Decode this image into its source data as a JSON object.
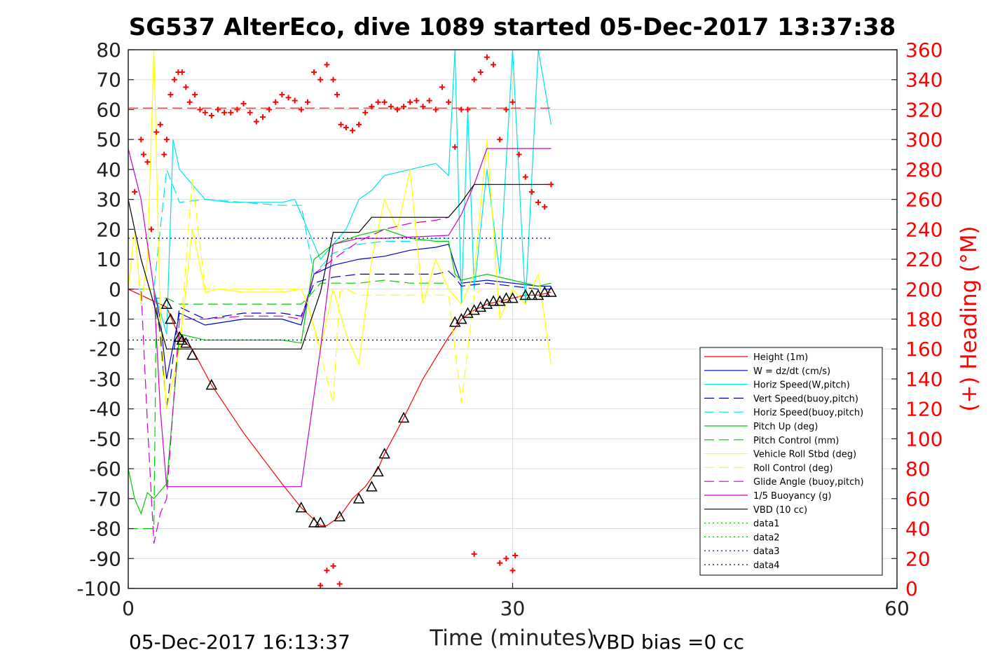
{
  "chart_data": {
    "type": "line",
    "title": "SG537 AlterEco, dive 1089 started 05-Dec-2017 13:37:38",
    "xlabel": "Time (minutes)",
    "ylabel": "",
    "y2label": "(+) Heading (°M)",
    "xlim": [
      0,
      60
    ],
    "ylim": [
      -100,
      80
    ],
    "y2lim": [
      0,
      360
    ],
    "xticks": [
      0,
      30,
      60
    ],
    "yticks": [
      80,
      70,
      60,
      50,
      40,
      30,
      20,
      10,
      0,
      -10,
      -20,
      -30,
      -40,
      -50,
      -60,
      -70,
      -80,
      -90,
      -100
    ],
    "y2ticks": [
      360,
      340,
      320,
      300,
      280,
      260,
      240,
      220,
      200,
      180,
      160,
      140,
      120,
      100,
      80,
      60,
      40,
      20,
      0
    ],
    "grid": true,
    "legend_position": "lower-right",
    "footer_left": "05-Dec-2017 16:13:37",
    "footer_right": "VBD bias =0 cc",
    "series": [
      {
        "name": "Height (1m)",
        "color": "#ff0000",
        "style": "solid",
        "x": [
          0,
          3,
          4,
          5,
          6.5,
          9,
          12,
          13.5,
          14.5,
          15,
          15.5,
          16.5,
          17.5,
          18.5,
          19.5,
          20,
          21.5,
          23,
          25,
          26,
          27,
          28,
          29,
          30,
          31,
          32,
          33
        ],
        "y": [
          0,
          -6,
          -16,
          -20,
          -32,
          -48,
          -65,
          -73,
          -77,
          -79,
          -79,
          -76,
          -70,
          -66,
          -60,
          -55,
          -43,
          -30,
          -16,
          -10,
          -7,
          -5,
          -4,
          -3,
          -2,
          -2,
          -1
        ]
      },
      {
        "name": "W = dz/dt (cm/s)",
        "color": "#0000cc",
        "style": "solid",
        "x": [
          0,
          2,
          2.5,
          3,
          4,
          6,
          9,
          12,
          13.5,
          14.5,
          16,
          18,
          20,
          22,
          24,
          25,
          25.5,
          26,
          28,
          30,
          32,
          33
        ],
        "y": [
          0,
          0,
          -10,
          -30,
          -8,
          -12,
          -10,
          -10,
          -12,
          5,
          8,
          10,
          11,
          13,
          14,
          15,
          8,
          2,
          3,
          2,
          1,
          1
        ]
      },
      {
        "name": "Horiz Speed(W,pitch)",
        "color": "#00e5e5",
        "style": "solid",
        "x": [
          0,
          2,
          3,
          3.5,
          4,
          5,
          6,
          8,
          10,
          12,
          13,
          14,
          15,
          16,
          17,
          18,
          19,
          20,
          22,
          24,
          25,
          25.5,
          26,
          26.5,
          27,
          28,
          29,
          30,
          31,
          32,
          33
        ],
        "y": [
          0,
          0,
          -15,
          50,
          40,
          35,
          30,
          29,
          29,
          29,
          30,
          20,
          10,
          15,
          20,
          30,
          33,
          38,
          40,
          42,
          38,
          80,
          -5,
          60,
          0,
          40,
          5,
          80,
          -5,
          80,
          55
        ]
      },
      {
        "name": "Vert Speed(buoy,pitch)",
        "color": "#0000cc",
        "style": "dashed",
        "x": [
          0,
          2,
          2.5,
          3,
          4,
          6,
          9,
          12,
          13.5,
          14.5,
          16,
          18,
          20,
          22,
          24,
          25,
          25.5,
          26,
          28,
          30,
          32,
          33
        ],
        "y": [
          0,
          0,
          -15,
          -40,
          -6,
          -10,
          -8,
          -8,
          -9,
          2,
          4,
          5,
          5,
          5,
          5,
          6,
          4,
          1,
          2,
          1,
          0,
          0
        ]
      },
      {
        "name": "Horiz Speed(buoy,pitch)",
        "color": "#00e5e5",
        "style": "dashed",
        "x": [
          0,
          2,
          3,
          4,
          6,
          9,
          12,
          13.5,
          14.5,
          16,
          18,
          20,
          22,
          24,
          25
        ],
        "y": [
          0,
          0,
          40,
          29,
          30,
          29,
          28,
          28,
          5,
          12,
          15,
          16,
          16,
          17,
          17
        ]
      },
      {
        "name": "Pitch Up (deg)",
        "color": "#00cc00",
        "style": "solid",
        "x": [
          0,
          0.5,
          1,
          1.5,
          2,
          3,
          4,
          6,
          9,
          12,
          13.5,
          14.5,
          16,
          18,
          20,
          22,
          24,
          25,
          25.5,
          26,
          28,
          30,
          32,
          33
        ],
        "y": [
          -60,
          -70,
          -75,
          -68,
          -70,
          -65,
          -15,
          -17,
          -17,
          -17,
          -18,
          10,
          15,
          18,
          20,
          17,
          16,
          16,
          5,
          3,
          5,
          3,
          1,
          2
        ]
      },
      {
        "name": "Pitch Control (mm)",
        "color": "#00cc00",
        "style": "dashed",
        "x": [
          0,
          2,
          2.2,
          3,
          4,
          6,
          12,
          13.5,
          14,
          15,
          18,
          20,
          22,
          24,
          25
        ],
        "y": [
          -80,
          -80,
          -3,
          -3,
          -5,
          -5,
          -5,
          -5,
          -3,
          2,
          2,
          3,
          2,
          2,
          2
        ]
      },
      {
        "name": "Vehicle Roll Stbd (deg)",
        "color": "#ffff00",
        "style": "solid",
        "x": [
          0,
          0.5,
          1,
          1.5,
          2,
          2.5,
          3,
          4,
          5,
          5.5,
          6,
          7,
          9,
          12,
          13.5,
          14,
          15,
          16,
          17,
          18,
          19,
          20,
          21,
          22,
          23,
          24,
          25,
          26,
          27,
          28,
          29,
          30,
          31,
          32,
          33
        ],
        "y": [
          0,
          20,
          -5,
          10,
          80,
          -10,
          -40,
          -20,
          20,
          10,
          -1,
          0,
          -1,
          -1,
          0,
          -5,
          -20,
          0,
          -15,
          -25,
          10,
          30,
          20,
          40,
          -5,
          10,
          0,
          -5,
          5,
          50,
          -10,
          0,
          -5,
          5,
          -25
        ]
      },
      {
        "name": "Roll Control (deg)",
        "color": "#ffff00",
        "style": "dashed",
        "x": [
          0,
          2,
          3,
          4,
          5,
          6,
          9,
          12,
          13.5,
          14,
          16,
          16.5,
          17,
          18,
          20,
          22,
          24,
          25,
          26,
          27,
          27.5
        ],
        "y": [
          0,
          0,
          -40,
          -20,
          37,
          0,
          0,
          0,
          0,
          -5,
          -38,
          -1,
          0,
          -2,
          -2,
          -2,
          -2,
          -2,
          -38,
          -2,
          0
        ]
      },
      {
        "name": "Glide Angle (buoy,pitch)",
        "color": "#cc00cc",
        "style": "dashed",
        "x": [
          0,
          1,
          1.5,
          2,
          2.5,
          3,
          4,
          6,
          9,
          12,
          13.5,
          14.5,
          16,
          18,
          20,
          22,
          24,
          25
        ],
        "y": [
          0,
          0,
          -45,
          -85,
          -75,
          -70,
          -10,
          -10,
          -9,
          -9,
          -10,
          5,
          10,
          16,
          20,
          22,
          23,
          24
        ]
      },
      {
        "name": "1/5 Buoyancy (g)",
        "color": "#cc00cc",
        "style": "solid",
        "x": [
          0,
          1,
          2,
          2.5,
          3,
          13.5,
          15,
          16,
          18,
          20,
          25,
          26,
          27,
          28,
          33
        ],
        "y": [
          47,
          30,
          0,
          -40,
          -66,
          -66,
          -20,
          15,
          17,
          17,
          18,
          25,
          35,
          47,
          47
        ]
      },
      {
        "name": "VBD (10 cc)",
        "color": "#000000",
        "style": "solid",
        "x": [
          0,
          1,
          2,
          3,
          13.5,
          15,
          16,
          18,
          19,
          20,
          25,
          26,
          27,
          33
        ],
        "y": [
          30,
          10,
          -5,
          -20,
          -20,
          -1,
          19,
          19,
          24,
          24,
          24,
          29,
          35,
          35
        ]
      },
      {
        "name": "data1",
        "color": "#00cc00",
        "style": "dotted",
        "x": [],
        "y": []
      },
      {
        "name": "data2",
        "color": "#00cc00",
        "style": "dotted",
        "x": [],
        "y": []
      },
      {
        "name": "data3",
        "color": "#000080",
        "style": "dotted",
        "x": [
          0,
          33
        ],
        "y": [
          17,
          17
        ]
      },
      {
        "name": "data4",
        "color": "#000080",
        "style": "dotted",
        "x": [
          0,
          33
        ],
        "y": [
          -17,
          -17
        ]
      }
    ],
    "heading_mean": 321,
    "heading_points": {
      "color": "#ff0000",
      "x": [
        0.5,
        1,
        1.2,
        1.5,
        1.8,
        2.2,
        2.5,
        2.8,
        3,
        3.3,
        3.6,
        3.9,
        4.2,
        4.5,
        4.8,
        5.2,
        5.6,
        6,
        6.5,
        7,
        7.5,
        8,
        8.5,
        9,
        9.5,
        10,
        10.5,
        11,
        11.5,
        12,
        12.5,
        13,
        13.5,
        14,
        14.5,
        15,
        15.5,
        16,
        16.3,
        16.6,
        17,
        17.5,
        18,
        18.5,
        19,
        19.5,
        20,
        20.5,
        21,
        21.5,
        22,
        22.5,
        23,
        23.5,
        24,
        24.5,
        25,
        25.5,
        26,
        26.5,
        27,
        27.5,
        28,
        28.5,
        29,
        29.5,
        30,
        30.5,
        31,
        31.5,
        32,
        32.5,
        33
      ],
      "y": [
        265,
        300,
        290,
        285,
        240,
        305,
        310,
        290,
        300,
        330,
        340,
        345,
        345,
        335,
        325,
        330,
        320,
        318,
        316,
        320,
        318,
        318,
        320,
        324,
        318,
        312,
        315,
        320,
        325,
        330,
        328,
        326,
        320,
        325,
        345,
        340,
        350,
        340,
        330,
        310,
        308,
        306,
        310,
        318,
        322,
        325,
        325,
        322,
        320,
        322,
        325,
        326,
        322,
        326,
        320,
        335,
        325,
        295,
        320,
        320,
        340,
        345,
        355,
        350,
        300,
        320,
        325,
        290,
        275,
        265,
        258,
        255,
        270
      ]
    },
    "heading_points_low": {
      "x": [
        15,
        15.5,
        16,
        16.5,
        27,
        29,
        29.5,
        30,
        30.2
      ],
      "y": [
        2,
        12,
        15,
        3,
        23,
        17,
        20,
        12,
        22
      ]
    },
    "markers": {
      "symbol": "triangle",
      "color": "#000000",
      "x": [
        3,
        3.3,
        4,
        4.2,
        4.5,
        5,
        6.5,
        13.5,
        14.5,
        15,
        16.5,
        18,
        19,
        19.5,
        20,
        21.5,
        25.5,
        26,
        26.5,
        27,
        27.5,
        28,
        28.5,
        29,
        29.5,
        30,
        31,
        31.5,
        32,
        32.5,
        33
      ],
      "y": [
        -5,
        -10,
        -16,
        -17,
        -18,
        -22,
        -32,
        -73,
        -78,
        -78,
        -76,
        -70,
        -66,
        -61,
        -55,
        -43,
        -11,
        -10,
        -8,
        -7,
        -6,
        -5,
        -4,
        -4,
        -3,
        -3,
        -2,
        -2,
        -2,
        -1,
        -1
      ]
    }
  }
}
